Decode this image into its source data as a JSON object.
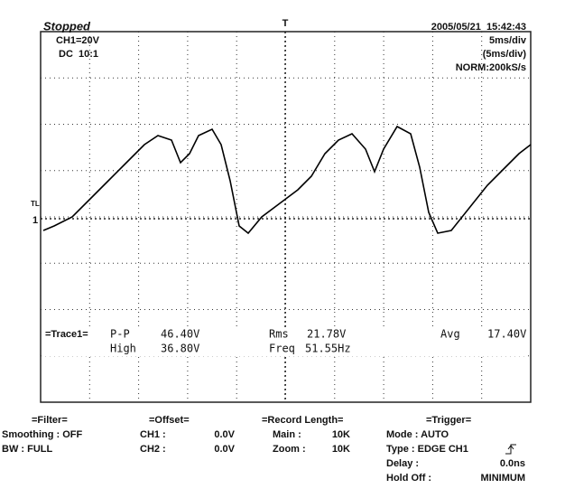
{
  "header": {
    "status": "Stopped",
    "channel": "CH1=20V",
    "coupling": "DC  10:1",
    "datetime": "2005/05/21  15:42:43",
    "timebase": "5ms/div",
    "timebase_zoom": "(5ms/div)",
    "sampling": "NORM:200kS/s"
  },
  "markers": {
    "trigger": "T",
    "trigger_level": "TL",
    "ground": "1"
  },
  "measurements": {
    "label": "=Trace1=",
    "row1": [
      {
        "name": "P-P",
        "value": "46.40V"
      },
      {
        "name": "Rms",
        "value": "21.78V"
      },
      {
        "name": "Avg",
        "value": "17.40V"
      }
    ],
    "row2": [
      {
        "name": "High",
        "value": "36.80V"
      },
      {
        "name": "Freq",
        "value": "51.55Hz"
      }
    ]
  },
  "settings": {
    "filter": {
      "title": "=Filter=",
      "smoothing": "Smoothing : OFF",
      "bw": "BW : FULL"
    },
    "offset": {
      "title": "=Offset=",
      "ch1": "CH1 :",
      "ch1_value": "0.0V",
      "ch2": "CH2 :",
      "ch2_value": "0.0V"
    },
    "record": {
      "title": "=Record Length=",
      "main": "Main :",
      "main_value": "10K",
      "zoom": "Zoom :",
      "zoom_value": "10K"
    },
    "trigger": {
      "title": "=Trigger=",
      "mode": "Mode : AUTO",
      "type": "Type : EDGE CH1",
      "delay": "Delay :",
      "delay_value": "0.0ns",
      "holdoff": "Hold Off :",
      "holdoff_value": "MINIMUM"
    }
  }
}
